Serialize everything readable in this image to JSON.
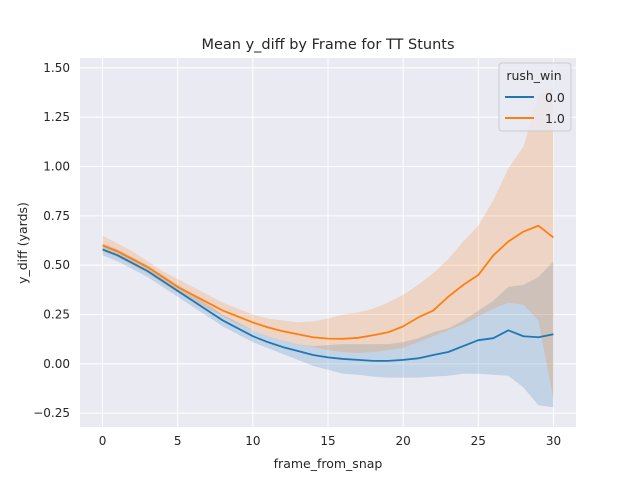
{
  "chart_data": {
    "type": "line",
    "title": "Mean y_diff by Frame for TT Stunts",
    "xlabel": "frame_from_snap",
    "ylabel": "y_diff (yards)",
    "xlim": [
      -1.5,
      31.5
    ],
    "ylim": [
      -0.32,
      1.55
    ],
    "x_ticks": [
      0,
      5,
      10,
      15,
      20,
      25,
      30
    ],
    "y_ticks": [
      -0.25,
      0.0,
      0.25,
      0.5,
      0.75,
      1.0,
      1.25,
      1.5
    ],
    "x_tick_labels": [
      "0",
      "5",
      "10",
      "15",
      "20",
      "25",
      "30"
    ],
    "y_tick_labels": [
      "−0.25",
      "0.00",
      "0.25",
      "0.50",
      "0.75",
      "1.00",
      "1.25",
      "1.50"
    ],
    "grid": true,
    "legend": {
      "title": "rush_win",
      "placement": "top-right"
    },
    "x": [
      0,
      1,
      2,
      3,
      4,
      5,
      6,
      7,
      8,
      9,
      10,
      11,
      12,
      13,
      14,
      15,
      16,
      17,
      18,
      19,
      20,
      21,
      22,
      23,
      24,
      25,
      26,
      27,
      28,
      29,
      30
    ],
    "series": [
      {
        "name": "0.0",
        "color": "#1f77b4",
        "values": [
          0.58,
          0.55,
          0.51,
          0.47,
          0.42,
          0.37,
          0.32,
          0.27,
          0.22,
          0.18,
          0.14,
          0.11,
          0.085,
          0.065,
          0.045,
          0.033,
          0.025,
          0.02,
          0.015,
          0.015,
          0.02,
          0.028,
          0.045,
          0.06,
          0.09,
          0.12,
          0.13,
          0.17,
          0.14,
          0.135,
          0.15
        ],
        "ci_low": [
          0.55,
          0.52,
          0.48,
          0.44,
          0.39,
          0.34,
          0.29,
          0.24,
          0.19,
          0.15,
          0.11,
          0.08,
          0.05,
          0.02,
          -0.01,
          -0.03,
          -0.05,
          -0.055,
          -0.065,
          -0.07,
          -0.07,
          -0.07,
          -0.065,
          -0.06,
          -0.05,
          -0.05,
          -0.055,
          -0.06,
          -0.12,
          -0.21,
          -0.22
        ],
        "ci_high": [
          0.61,
          0.58,
          0.54,
          0.5,
          0.45,
          0.4,
          0.35,
          0.3,
          0.25,
          0.21,
          0.17,
          0.14,
          0.12,
          0.1,
          0.09,
          0.095,
          0.1,
          0.1,
          0.1,
          0.1,
          0.11,
          0.13,
          0.16,
          0.18,
          0.22,
          0.27,
          0.32,
          0.39,
          0.4,
          0.44,
          0.52
        ]
      },
      {
        "name": "1.0",
        "color": "#ff7f0e",
        "values": [
          0.6,
          0.57,
          0.53,
          0.49,
          0.44,
          0.39,
          0.35,
          0.31,
          0.27,
          0.24,
          0.21,
          0.185,
          0.165,
          0.15,
          0.135,
          0.128,
          0.127,
          0.132,
          0.145,
          0.16,
          0.19,
          0.235,
          0.27,
          0.34,
          0.4,
          0.45,
          0.55,
          0.62,
          0.67,
          0.7,
          0.64
        ],
        "ci_low": [
          0.57,
          0.54,
          0.5,
          0.46,
          0.41,
          0.36,
          0.32,
          0.28,
          0.24,
          0.2,
          0.17,
          0.14,
          0.12,
          0.1,
          0.085,
          0.07,
          0.06,
          0.055,
          0.06,
          0.07,
          0.08,
          0.11,
          0.14,
          0.17,
          0.2,
          0.24,
          0.28,
          0.31,
          0.3,
          0.22,
          -0.18
        ],
        "ci_high": [
          0.65,
          0.61,
          0.57,
          0.52,
          0.47,
          0.43,
          0.39,
          0.35,
          0.31,
          0.28,
          0.25,
          0.23,
          0.22,
          0.21,
          0.215,
          0.23,
          0.25,
          0.26,
          0.28,
          0.31,
          0.35,
          0.4,
          0.46,
          0.53,
          0.62,
          0.7,
          0.83,
          0.99,
          1.1,
          1.36,
          1.4
        ]
      }
    ]
  }
}
